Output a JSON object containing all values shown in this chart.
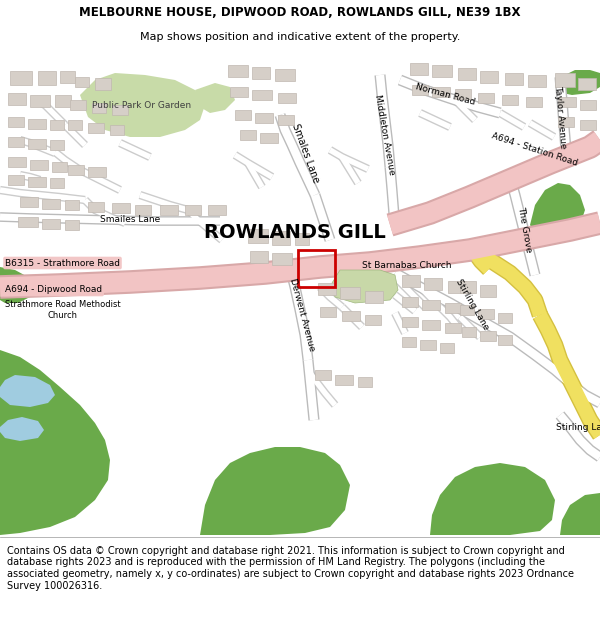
{
  "title_line1": "MELBOURNE HOUSE, DIPWOOD ROAD, ROWLANDS GILL, NE39 1BX",
  "title_line2": "Map shows position and indicative extent of the property.",
  "footer_text": "Contains OS data © Crown copyright and database right 2021. This information is subject to Crown copyright and database rights 2023 and is reproduced with the permission of HM Land Registry. The polygons (including the associated geometry, namely x, y co-ordinates) are subject to Crown copyright and database rights 2023 Ordnance Survey 100026316.",
  "title_fontsize": 8.5,
  "footer_fontsize": 7.0,
  "map_bg_color": "#f0eeea",
  "building_color": "#d6cfc8",
  "building_edge_color": "#c0b8b0",
  "road_major_color": "#f2c4c4",
  "road_minor_color": "#ffffff",
  "road_edge_color": "#cccccc",
  "green_light_color": "#c8dba8",
  "green_dark_color": "#6aaa4a",
  "water_color": "#a0cce0",
  "yellow_road_color": "#f0e060",
  "yellow_road_edge": "#d4c040",
  "property_color": "#cc0000",
  "place_name": "ROWLANDS GILL",
  "title_color": "#000000",
  "footer_bg": "#ffffff",
  "map_border_color": "#cccccc"
}
